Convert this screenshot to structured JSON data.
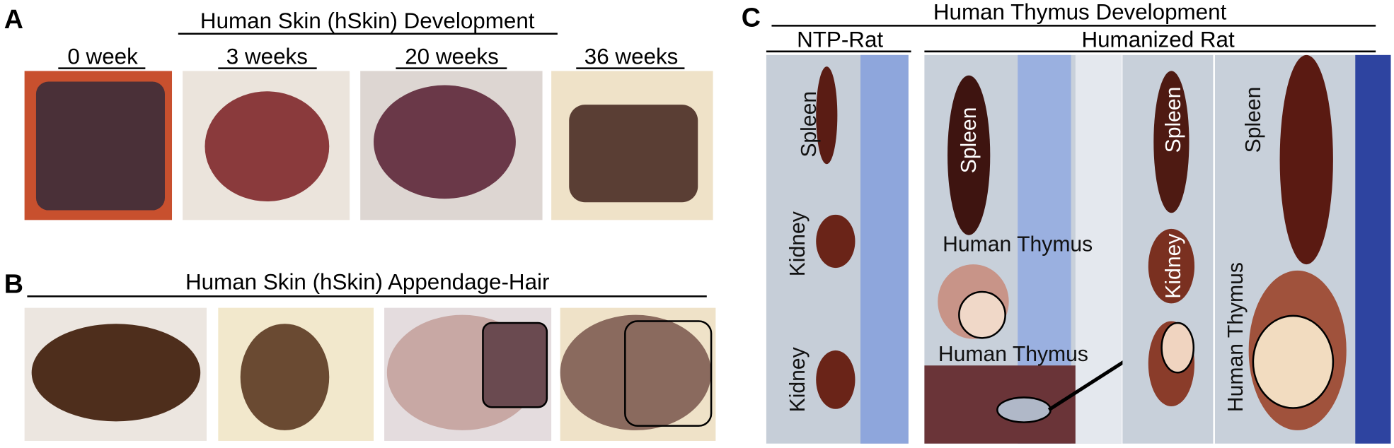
{
  "panels": [
    {
      "label": "A",
      "title": "Human Skin (hSkin) Development",
      "images": [
        "0 week",
        "3 weeks",
        "20 weeks",
        "36 weeks"
      ]
    },
    {
      "label": "B",
      "title": "Human Skin (hSkin) Appendage-Hair"
    },
    {
      "label": "C",
      "title": "Human Thymus Development",
      "groups": [
        "NTP-Rat",
        "Humanized Rat"
      ],
      "organ_labels": [
        "Spleen",
        "Kidney",
        "Kidney",
        "Spleen",
        "Human Thymus",
        "Human Thymus",
        "Spleen",
        "Kidney",
        "Spleen",
        "Human Thymus"
      ]
    }
  ]
}
